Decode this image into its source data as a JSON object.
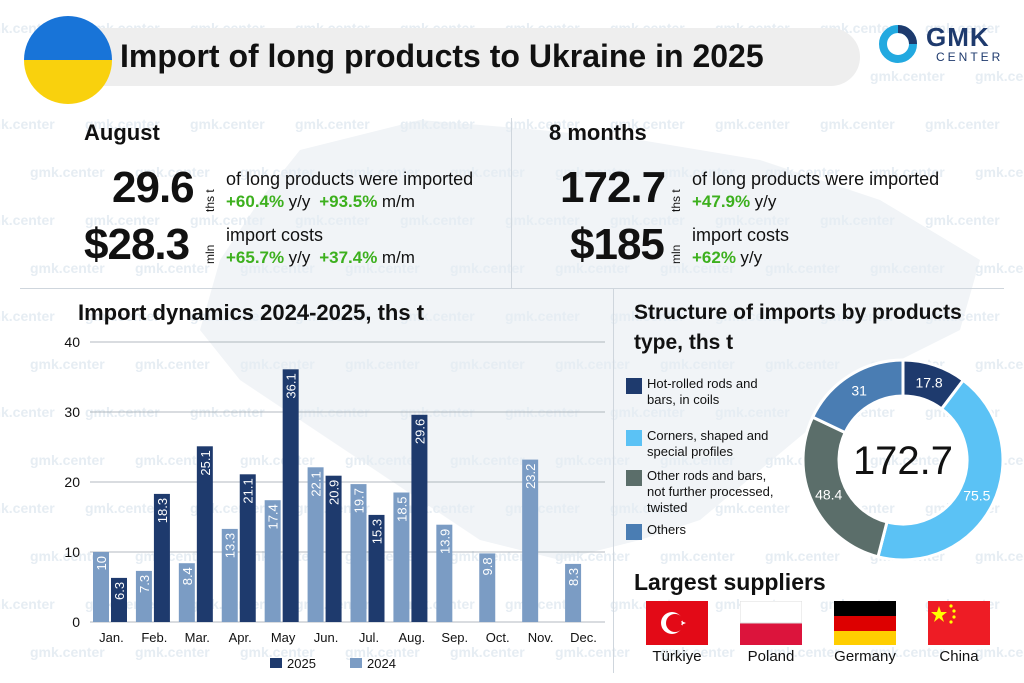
{
  "header": {
    "title": "Import of long products to Ukraine in 2025",
    "logo_main": "GMK",
    "logo_sub": "CENTER",
    "flag_colors": [
      "#1874d8",
      "#f9d10d"
    ]
  },
  "watermark_text": "gmk.center",
  "august": {
    "heading": "August",
    "volume": "29.6",
    "volume_unit": "ths t",
    "volume_desc": "of long products were imported",
    "volume_yoy": "+60.4%",
    "volume_yoy_label": "y/y",
    "volume_mom": "+93.5%",
    "volume_mom_label": "m/m",
    "cost": "$28.3",
    "cost_unit": "mln",
    "cost_desc": "import costs",
    "cost_yoy": "+65.7%",
    "cost_yoy_label": "y/y",
    "cost_mom": "+37.4%",
    "cost_mom_label": "m/m"
  },
  "eight_months": {
    "heading": "8 months",
    "volume": "172.7",
    "volume_unit": "ths t",
    "volume_desc": "of long products were imported",
    "volume_yoy": "+47.9%",
    "volume_yoy_label": "y/y",
    "cost": "$185",
    "cost_unit": "mln",
    "cost_desc": "import costs",
    "cost_yoy": "+62%",
    "cost_yoy_label": "y/y"
  },
  "colors": {
    "dark": "#1e3a6d",
    "light": "#7b9cc4",
    "positive": "#3db01e"
  },
  "chart_data": [
    {
      "type": "bar",
      "title": "Import dynamics 2024-2025, ths t",
      "categories": [
        "Jan.",
        "Feb.",
        "Mar.",
        "Apr.",
        "May",
        "Jun.",
        "Jul.",
        "Aug.",
        "Sep.",
        "Oct.",
        "Nov.",
        "Dec."
      ],
      "series": [
        {
          "name": "2024",
          "color": "#7b9cc4",
          "values": [
            10,
            7.3,
            8.4,
            13.3,
            17.4,
            22.1,
            19.7,
            18.5,
            13.9,
            9.8,
            23.2,
            8.3
          ]
        },
        {
          "name": "2025",
          "color": "#1e3a6d",
          "values": [
            6.3,
            18.3,
            25.1,
            21.1,
            36.1,
            20.9,
            15.3,
            29.6,
            null,
            null,
            null,
            null
          ]
        }
      ],
      "ylim": [
        0,
        40
      ],
      "yticks": [
        0,
        10,
        20,
        30,
        40
      ],
      "grid": true,
      "legend": "bottom"
    },
    {
      "type": "pie",
      "title": "Structure of imports by products type, ths t",
      "center_label": "172.7",
      "slices": [
        {
          "label": "Hot-rolled rods and bars, in coils",
          "value": 17.8,
          "color": "#1e3a6d"
        },
        {
          "label": "Corners, shaped and special profiles",
          "value": 75.5,
          "color": "#5bc2f5"
        },
        {
          "label": "Other rods and bars, not further processed, twisted",
          "value": 48.4,
          "color": "#5b6e6a"
        },
        {
          "label": "Others",
          "value": 31,
          "color": "#4a7db3"
        }
      ],
      "legend": "left"
    }
  ],
  "suppliers": {
    "title": "Largest suppliers",
    "countries": [
      "Türkiye",
      "Poland",
      "Germany",
      "China"
    ]
  }
}
